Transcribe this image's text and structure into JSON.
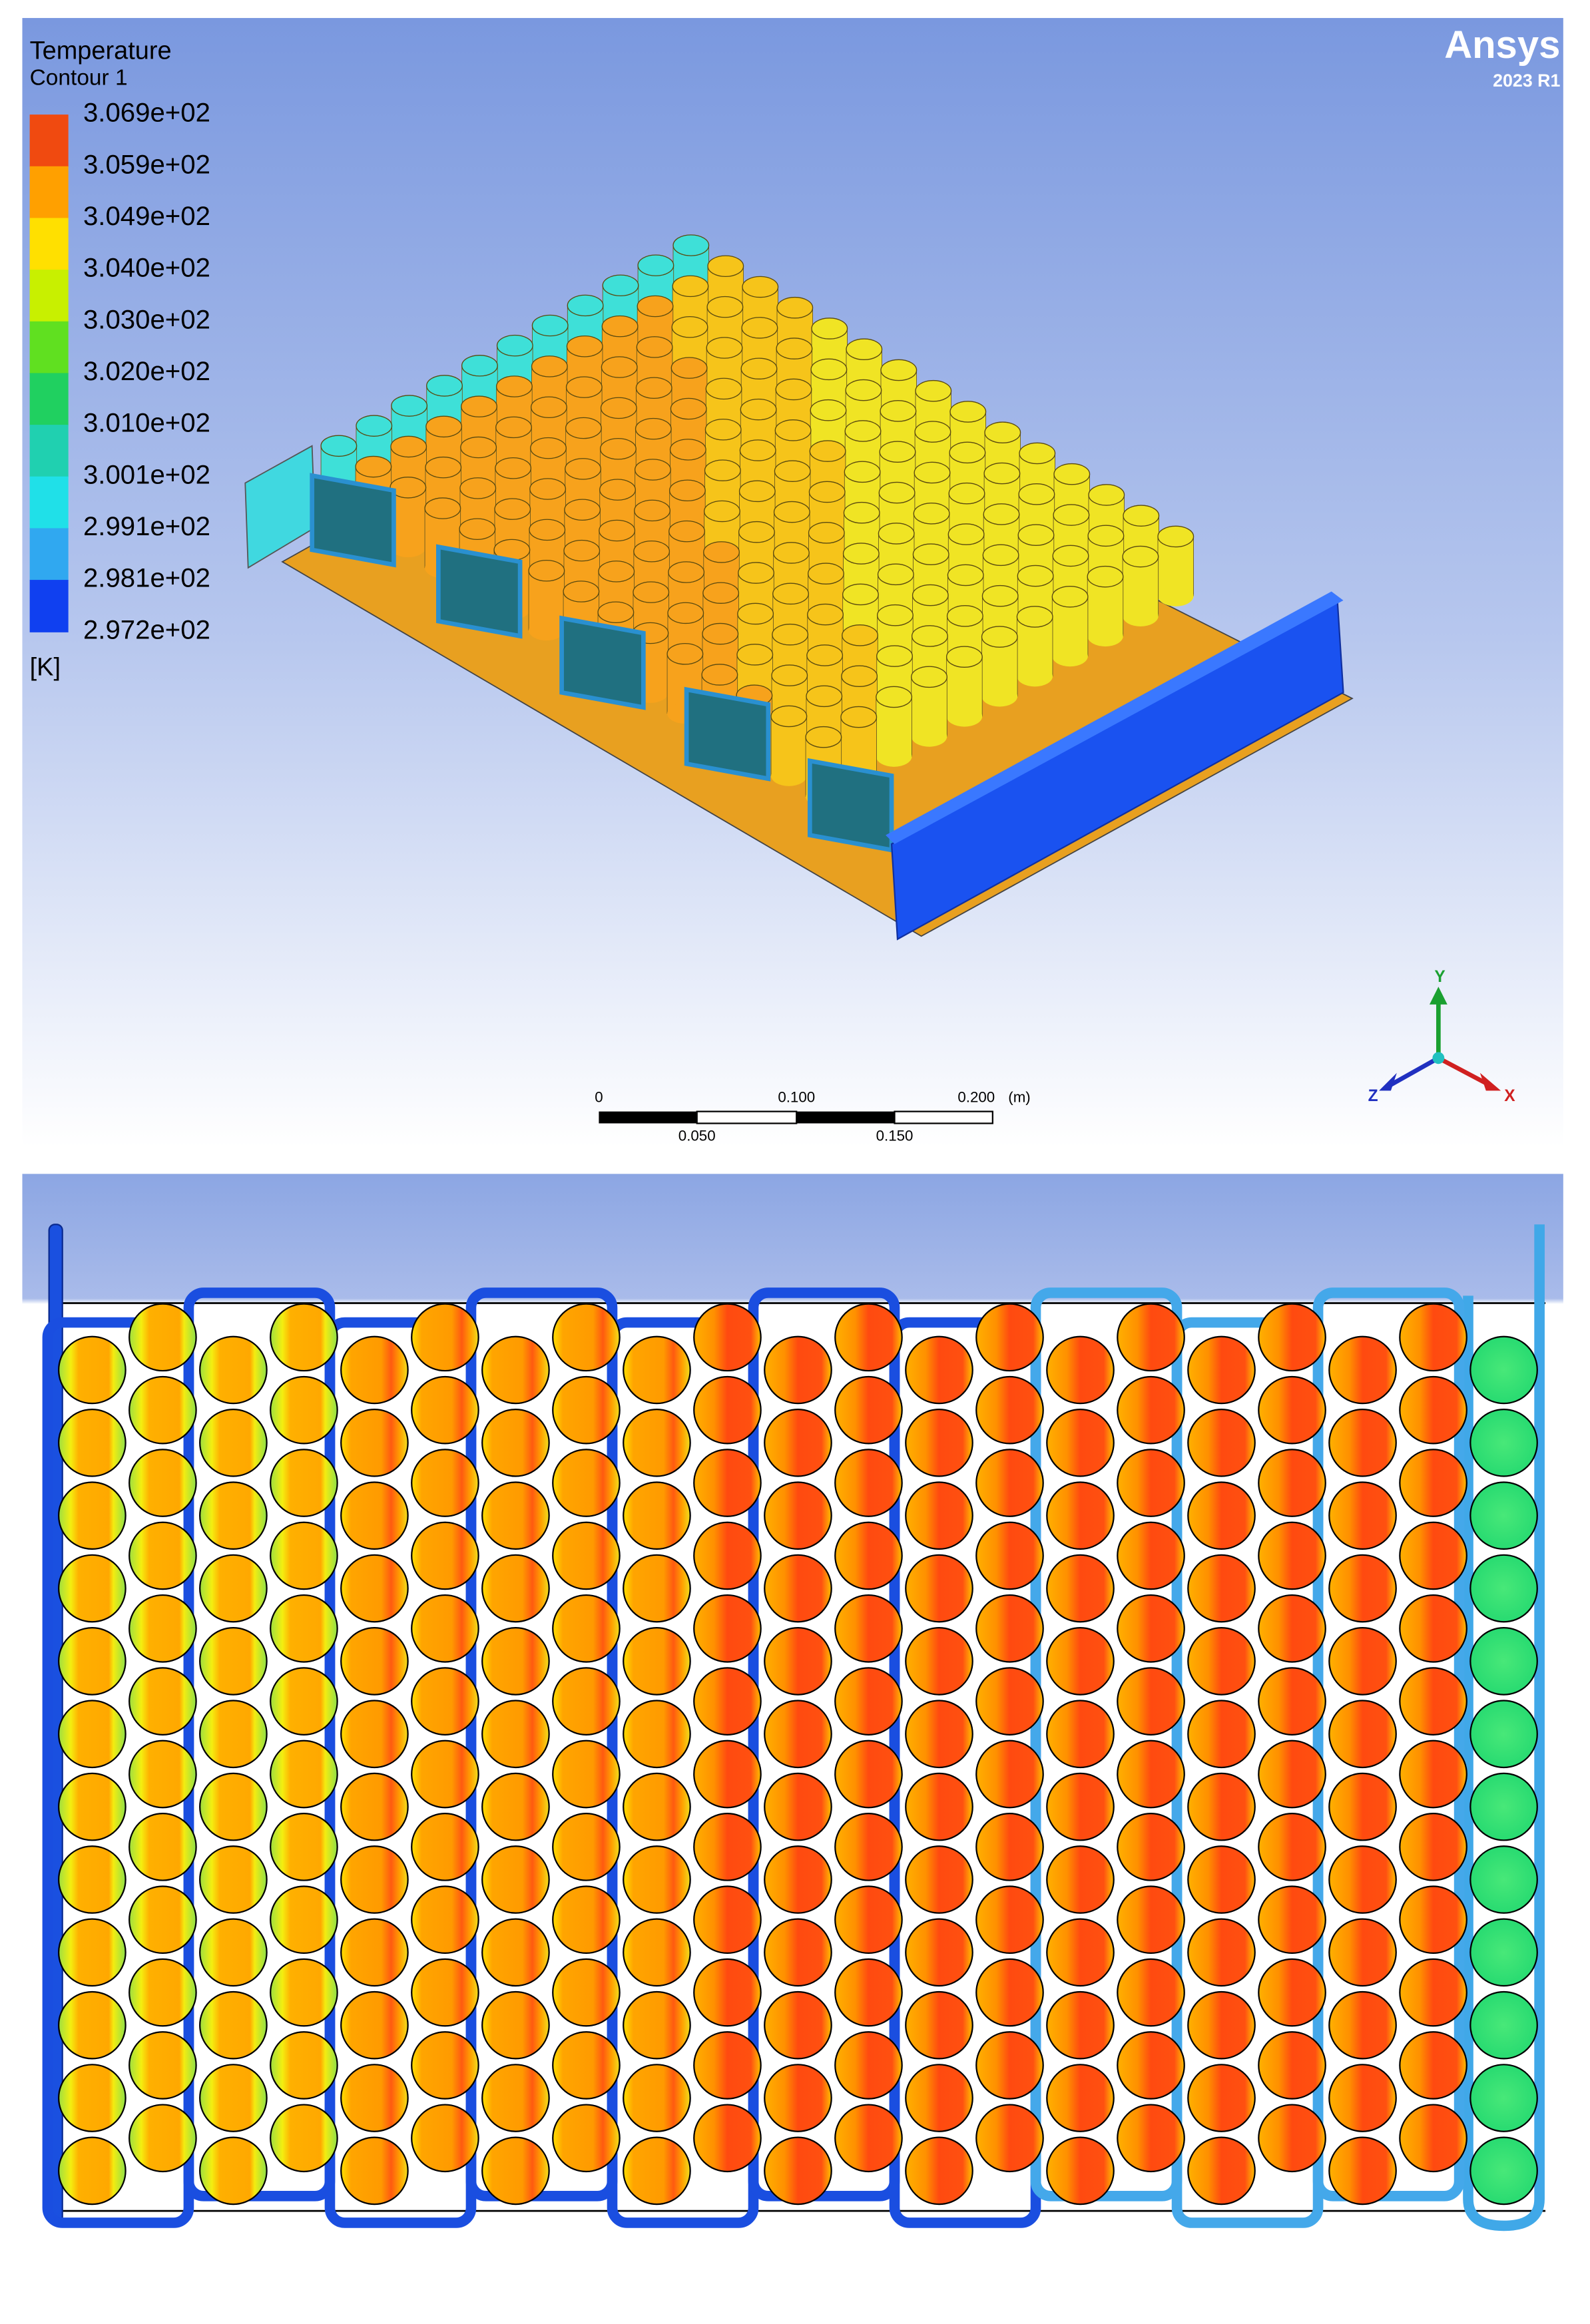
{
  "top_panel": {
    "legend": {
      "title": "Temperature",
      "subtitle": "Contour 1",
      "labels": [
        "3.069e+02",
        "3.059e+02",
        "3.049e+02",
        "3.040e+02",
        "3.030e+02",
        "3.020e+02",
        "3.010e+02",
        "3.001e+02",
        "2.991e+02",
        "2.981e+02",
        "2.972e+02"
      ],
      "unit": "[K]"
    },
    "logo": {
      "name": "Ansys",
      "version": "2023 R1"
    },
    "scale_bar": {
      "upper_labels": [
        "0",
        "0.100",
        "0.200"
      ],
      "unit": "(m)",
      "lower_labels": [
        "0.050",
        "0.150"
      ]
    },
    "axes": {
      "y": "Y",
      "z": "Z",
      "x": "X"
    }
  }
}
